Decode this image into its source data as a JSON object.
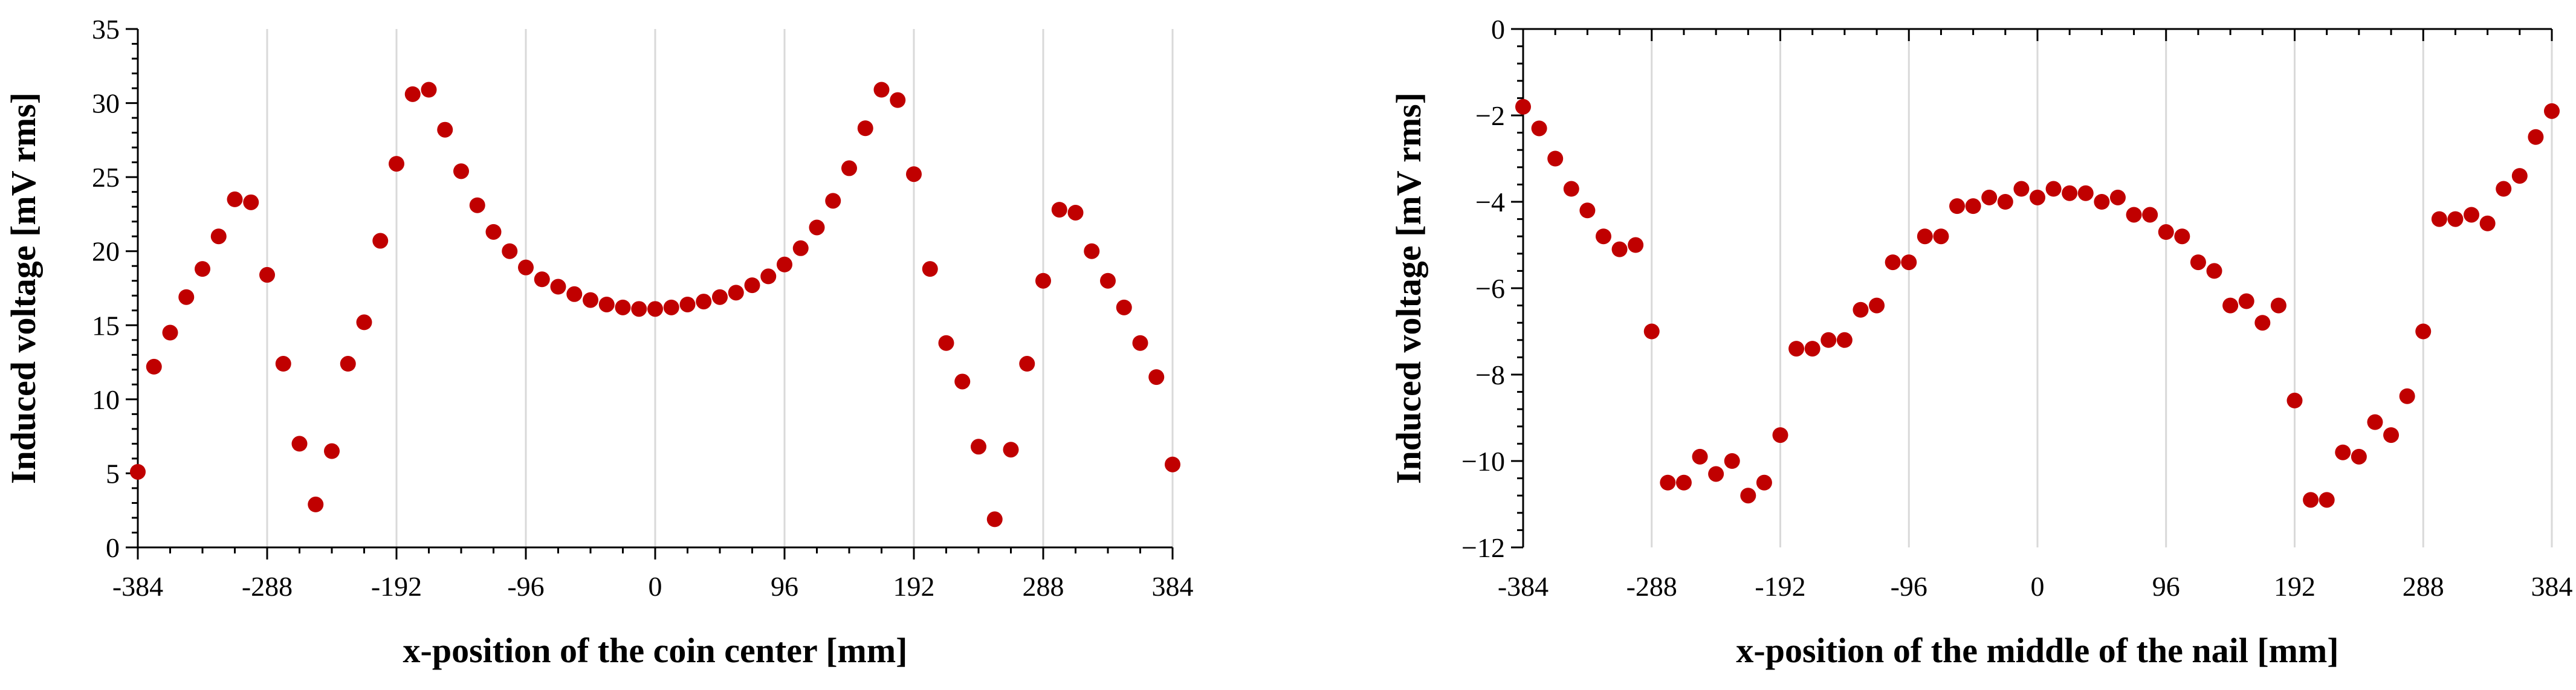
{
  "chart_data": [
    {
      "type": "scatter",
      "xlabel": "x-position of the coin center [mm]",
      "ylabel": "Induced voltage [mV rms]",
      "xlim": [
        -384,
        384
      ],
      "ylim": [
        0,
        35
      ],
      "xticks": [
        -384,
        -288,
        -192,
        -96,
        0,
        96,
        192,
        288,
        384
      ],
      "yticks": [
        0,
        5,
        10,
        15,
        20,
        25,
        30,
        35
      ],
      "xtick_labels": [
        "-384",
        "-288",
        "-192",
        "-96",
        "0",
        "96",
        "192",
        "288",
        "384"
      ],
      "ytick_labels": [
        "0",
        "5",
        "10",
        "15",
        "20",
        "25",
        "30",
        "35"
      ],
      "grid": "vertical",
      "color": "#c00000",
      "x": [
        -384,
        -372,
        -360,
        -348,
        -336,
        -324,
        -312,
        -300,
        -288,
        -276,
        -264,
        -252,
        -240,
        -228,
        -216,
        -204,
        -192,
        -180,
        -168,
        -156,
        -144,
        -132,
        -120,
        -108,
        -96,
        -84,
        -72,
        -60,
        -48,
        -36,
        -24,
        -12,
        0,
        12,
        24,
        36,
        48,
        60,
        72,
        84,
        96,
        108,
        120,
        132,
        144,
        156,
        168,
        180,
        192,
        204,
        216,
        228,
        240,
        252,
        264,
        276,
        288,
        300,
        312,
        324,
        336,
        348,
        360,
        372,
        384
      ],
      "y": [
        5.1,
        12.2,
        14.5,
        16.9,
        18.8,
        21.0,
        23.5,
        23.3,
        18.4,
        12.4,
        7.0,
        2.9,
        6.5,
        12.4,
        15.2,
        20.7,
        25.9,
        30.6,
        30.9,
        28.2,
        25.4,
        23.1,
        21.3,
        20.0,
        18.9,
        18.1,
        17.6,
        17.1,
        16.7,
        16.4,
        16.2,
        16.1,
        16.1,
        16.2,
        16.4,
        16.6,
        16.9,
        17.2,
        17.7,
        18.3,
        19.1,
        20.2,
        21.6,
        23.4,
        25.6,
        28.3,
        30.9,
        30.2,
        25.2,
        18.8,
        13.8,
        11.2,
        6.8,
        1.9,
        6.6,
        12.4,
        18.0,
        22.8,
        22.6,
        20.0,
        18.0,
        16.2,
        13.8,
        11.5,
        5.6
      ]
    },
    {
      "type": "scatter",
      "xlabel": "x-position of the middle of the nail [mm]",
      "ylabel": "Induced voltage [mV rms]",
      "xlim": [
        -384,
        384
      ],
      "ylim": [
        -12,
        0
      ],
      "xticks": [
        -384,
        -288,
        -192,
        -96,
        0,
        96,
        192,
        288,
        384
      ],
      "yticks": [
        -12,
        -10,
        -8,
        -6,
        -4,
        -2,
        0
      ],
      "xtick_labels": [
        "-384",
        "-288",
        "-192",
        "-96",
        "0",
        "96",
        "192",
        "288",
        "384"
      ],
      "ytick_labels": [
        "−12",
        "−10",
        "−8",
        "−6",
        "−4",
        "−2",
        "0"
      ],
      "grid": "vertical",
      "color": "#c00000",
      "x": [
        -384,
        -372,
        -360,
        -348,
        -336,
        -324,
        -312,
        -300,
        -288,
        -276,
        -264,
        -252,
        -240,
        -228,
        -216,
        -204,
        -192,
        -180,
        -168,
        -156,
        -144,
        -132,
        -120,
        -108,
        -96,
        -84,
        -72,
        -60,
        -48,
        -36,
        -24,
        -12,
        0,
        12,
        24,
        36,
        48,
        60,
        72,
        84,
        96,
        108,
        120,
        132,
        144,
        156,
        168,
        180,
        192,
        204,
        216,
        228,
        240,
        252,
        264,
        276,
        288,
        300,
        312,
        324,
        336,
        348,
        360,
        372,
        384
      ],
      "y": [
        -1.8,
        -2.3,
        -3.0,
        -3.7,
        -4.2,
        -4.8,
        -5.1,
        -5.0,
        -7.0,
        -10.5,
        -10.5,
        -9.9,
        -10.3,
        -10.0,
        -10.8,
        -10.5,
        -9.4,
        -7.4,
        -7.4,
        -7.2,
        -7.2,
        -6.5,
        -6.4,
        -5.4,
        -5.4,
        -4.8,
        -4.8,
        -4.1,
        -4.1,
        -3.9,
        -4.0,
        -3.7,
        -3.9,
        -3.7,
        -3.8,
        -3.8,
        -4.0,
        -3.9,
        -4.3,
        -4.3,
        -4.7,
        -4.8,
        -5.4,
        -5.6,
        -6.4,
        -6.3,
        -6.8,
        -6.4,
        -8.6,
        -10.9,
        -10.9,
        -9.8,
        -9.9,
        -9.1,
        -9.4,
        -8.5,
        -7.0,
        -4.4,
        -4.4,
        -4.3,
        -4.5,
        -3.7,
        -3.4,
        -2.5,
        -1.9
      ]
    }
  ]
}
